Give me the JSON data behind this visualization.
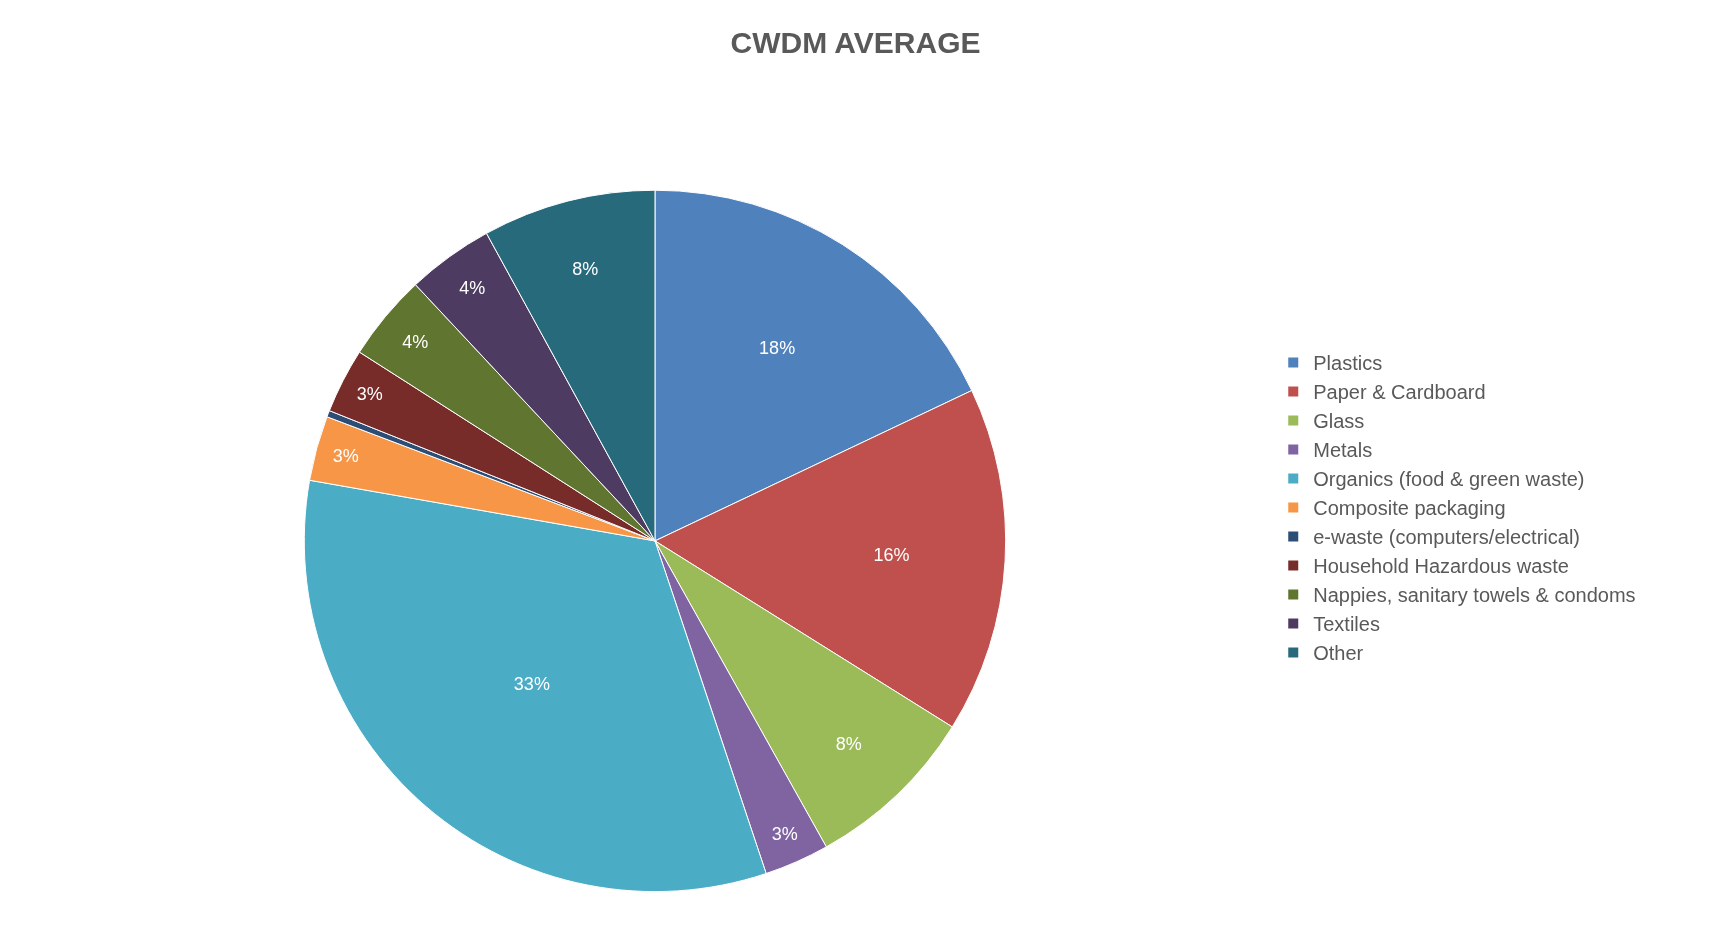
{
  "chart_data": {
    "type": "pie",
    "title": "CWDM AVERAGE",
    "categories": [
      "Plastics",
      "Paper & Cardboard",
      "Glass",
      "Metals",
      "Organics (food & green waste)",
      "Composite packaging",
      "e-waste (computers/electrical)",
      "Household Hazardous waste",
      "Nappies, sanitary towels & condoms",
      "Textiles",
      "Other"
    ],
    "values": [
      18,
      16,
      8,
      3,
      33,
      3,
      0.3,
      3,
      4,
      4,
      8
    ],
    "value_labels": [
      "18%",
      "16%",
      "8%",
      "3%",
      "33%",
      "3%",
      null,
      "3%",
      "4%",
      "4%",
      "8%"
    ],
    "colors": [
      "#4f81bd",
      "#c0504d",
      "#9bbb59",
      "#8064a2",
      "#4bacc6",
      "#f79646",
      "#2c4d75",
      "#772c2a",
      "#5f7530",
      "#4d3b62",
      "#276a7c"
    ],
    "legend": "right"
  }
}
